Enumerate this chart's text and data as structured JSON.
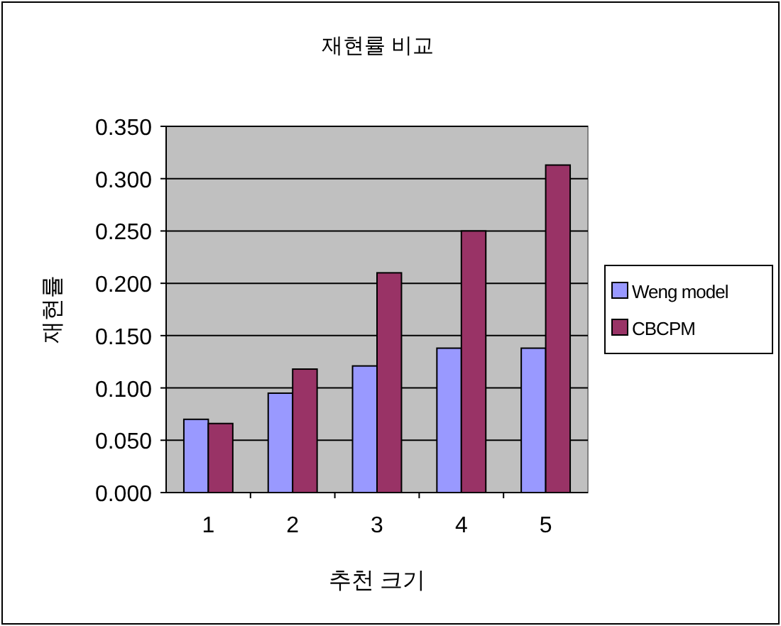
{
  "chart_data": {
    "type": "bar",
    "title": "재현률 비교",
    "xlabel": "추천 크기",
    "ylabel": "재현률",
    "categories": [
      "1",
      "2",
      "3",
      "4",
      "5"
    ],
    "series": [
      {
        "name": "Weng model",
        "color": "#9999ff",
        "values": [
          0.07,
          0.095,
          0.121,
          0.138,
          0.138
        ]
      },
      {
        "name": "CBCPM",
        "color": "#993366",
        "values": [
          0.066,
          0.118,
          0.21,
          0.25,
          0.313
        ]
      }
    ],
    "ylim": [
      0,
      0.35
    ],
    "yticks": [
      {
        "value": 0,
        "label": "0.000"
      },
      {
        "value": 0.05,
        "label": "0.050"
      },
      {
        "value": 0.1,
        "label": "0.100"
      },
      {
        "value": 0.15,
        "label": "0.150"
      },
      {
        "value": 0.2,
        "label": "0.200"
      },
      {
        "value": 0.25,
        "label": "0.250"
      },
      {
        "value": 0.3,
        "label": "0.300"
      },
      {
        "value": 0.35,
        "label": "0.350"
      }
    ],
    "grid": "y",
    "legend": "right"
  }
}
